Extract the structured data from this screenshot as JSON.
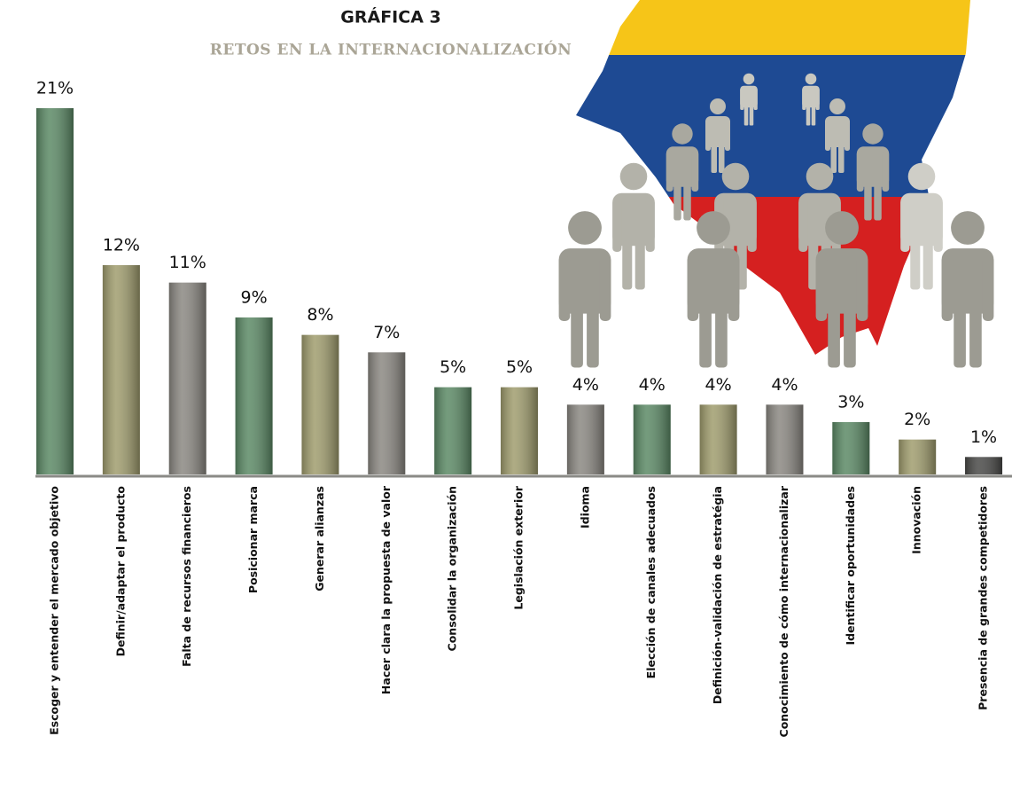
{
  "chart_data": {
    "type": "bar",
    "title": "GRÁFICA 3",
    "subtitle": "RETOS EN LA INTERNACIONALIZACIÓN",
    "categories": [
      "Escoger y entender el mercado objetivo",
      "Definir/adaptar el producto",
      "Falta de recursos financieros",
      "Posicionar marca",
      "Generar alianzas",
      "Hacer clara la propuesta de valor",
      "Consolidar la organización",
      "Legislación exterior",
      "Idioma",
      "Elección de canales adecuados",
      "Definición-validación de estratégia",
      "Conocimiento  de cómo internacionalizar",
      "Identificar oportunidades",
      "Innovación",
      "Presencia de grandes competidores"
    ],
    "values": [
      21,
      12,
      11,
      9,
      8,
      7,
      5,
      5,
      4,
      4,
      4,
      4,
      3,
      2,
      1
    ],
    "value_labels": [
      "21%",
      "12%",
      "11%",
      "9%",
      "8%",
      "7%",
      "5%",
      "5%",
      "4%",
      "4%",
      "4%",
      "4%",
      "3%",
      "2%",
      "1%"
    ],
    "colors": [
      "#5c8a66",
      "#a09d6e",
      "#8b8882",
      "#5c8a66",
      "#a09d6e",
      "#8b8882",
      "#5c8a66",
      "#a09d6e",
      "#8b8882",
      "#5c8a66",
      "#a09d6e",
      "#8b8882",
      "#5c8a66",
      "#a09d6e",
      "#4a4a48"
    ]
  }
}
